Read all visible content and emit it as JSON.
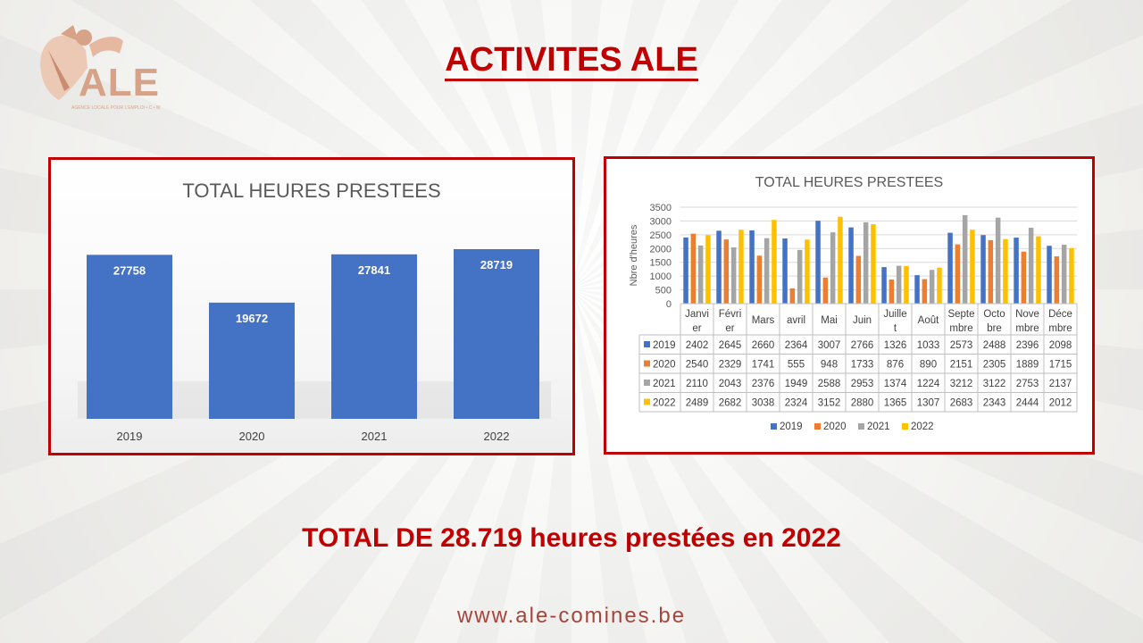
{
  "logo": {
    "text": "ALE",
    "tagline": "AGENCE LOCALE POUR L'EMPLOI • C • W"
  },
  "page_title": "ACTIVITES ALE",
  "summary": "TOTAL DE 28.719 heures prestées en 2022",
  "website": "www.ale-comines.be",
  "colors": {
    "accent": "#c00000",
    "bar_blue": "#4472c4",
    "s2019": "#4472c4",
    "s2020": "#ed7d31",
    "s2021": "#a5a5a5",
    "s2022": "#ffc000"
  },
  "chart_data": [
    {
      "type": "bar",
      "title": "TOTAL HEURES PRESTEES",
      "categories": [
        "2019",
        "2020",
        "2021",
        "2022"
      ],
      "values": [
        27758,
        19672,
        27841,
        28719
      ],
      "value_labels": [
        "27758",
        "19672",
        "27841",
        "28719"
      ],
      "data_labels": true
    },
    {
      "type": "bar",
      "title": "TOTAL HEURES PRESTEES",
      "ylabel": "Nbre d'heures",
      "ylim": [
        0,
        3500
      ],
      "yticks": [
        "0",
        "500",
        "1000",
        "1500",
        "2000",
        "2500",
        "3000",
        "3500"
      ],
      "grid": true,
      "legend": "bottom",
      "categories": [
        "Janvier",
        "Février",
        "Mars",
        "avril",
        "Mai",
        "Juin",
        "Juillet",
        "Août",
        "Septembre",
        "Octobre",
        "Novembre",
        "Décembre"
      ],
      "category_labels": [
        [
          "Janvi",
          "er"
        ],
        [
          "Févri",
          "er"
        ],
        [
          "Mars"
        ],
        [
          "avril"
        ],
        [
          "Mai"
        ],
        [
          "Juin"
        ],
        [
          "Juille",
          "t"
        ],
        [
          "Août"
        ],
        [
          "Septe",
          "mbre"
        ],
        [
          "Octo",
          "bre"
        ],
        [
          "Nove",
          "mbre"
        ],
        [
          "Déce",
          "mbre"
        ]
      ],
      "series": [
        {
          "name": "2019",
          "values": [
            2402,
            2645,
            2660,
            2364,
            3007,
            2766,
            1326,
            1033,
            2573,
            2488,
            2396,
            2098
          ]
        },
        {
          "name": "2020",
          "values": [
            2540,
            2329,
            1741,
            555,
            948,
            1733,
            876,
            890,
            2151,
            2305,
            1889,
            1715
          ]
        },
        {
          "name": "2021",
          "values": [
            2110,
            2043,
            2376,
            1949,
            2588,
            2953,
            1374,
            1224,
            3212,
            3122,
            2753,
            2137
          ]
        },
        {
          "name": "2022",
          "values": [
            2489,
            2682,
            3038,
            2324,
            3152,
            2880,
            1365,
            1307,
            2683,
            2343,
            2444,
            2012
          ]
        }
      ]
    }
  ]
}
